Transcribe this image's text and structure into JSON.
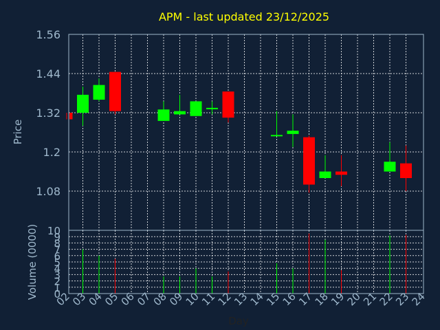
{
  "chart_data": {
    "type": "candlestick",
    "title": "APM - last updated 23/12/2025",
    "colors": {
      "background": "#112035",
      "up": "#00ff00",
      "down": "#ff0000",
      "title": "#ffff00",
      "axis": "#9fb8cc"
    },
    "grid": true,
    "price_panel": {
      "ylabel": "Price",
      "ylim": [
        0.96,
        1.56
      ],
      "yticks": [
        "1.56",
        "1.44",
        "1.32",
        "1.2",
        "1.08"
      ],
      "ytick_values": [
        1.56,
        1.44,
        1.32,
        1.2,
        1.08
      ]
    },
    "volume_panel": {
      "ylabel": "Volume (0000)",
      "ylim": [
        0,
        10
      ],
      "yticks": [
        "10",
        "9",
        "8",
        "7",
        "6",
        "5",
        "4",
        "3",
        "2",
        "1",
        "0"
      ],
      "ytick_values": [
        10,
        9,
        8,
        7,
        6,
        5,
        4,
        3,
        2,
        1,
        0
      ]
    },
    "xlabel": "Day",
    "x_ticks": [
      "02",
      "03",
      "04",
      "05",
      "06",
      "07",
      "08",
      "09",
      "10",
      "11",
      "12",
      "13",
      "14",
      "15",
      "16",
      "17",
      "18",
      "19",
      "20",
      "21",
      "22",
      "23",
      "24"
    ],
    "candles": [
      {
        "day": "02",
        "open": 1.32,
        "high": 1.32,
        "low": 1.3,
        "close": 1.3,
        "volume": 0
      },
      {
        "day": "03",
        "open": 1.32,
        "high": 1.4,
        "low": 1.28,
        "close": 1.375,
        "volume": 7.0
      },
      {
        "day": "04",
        "open": 1.36,
        "high": 1.425,
        "low": 1.355,
        "close": 1.405,
        "volume": 6.0
      },
      {
        "day": "05",
        "open": 1.445,
        "high": 1.445,
        "low": 1.315,
        "close": 1.325,
        "volume": 5.5
      },
      {
        "day": "08",
        "open": 1.295,
        "high": 1.355,
        "low": 1.295,
        "close": 1.33,
        "volume": 2.7
      },
      {
        "day": "09",
        "open": 1.315,
        "high": 1.375,
        "low": 1.315,
        "close": 1.325,
        "volume": 2.7
      },
      {
        "day": "10",
        "open": 1.31,
        "high": 1.355,
        "low": 1.31,
        "close": 1.355,
        "volume": 4.0
      },
      {
        "day": "11",
        "open": 1.335,
        "high": 1.355,
        "low": 1.315,
        "close": 1.335,
        "volume": 2.7
      },
      {
        "day": "12",
        "open": 1.385,
        "high": 1.385,
        "low": 1.29,
        "close": 1.305,
        "volume": 3.5
      },
      {
        "day": "15",
        "open": 1.25,
        "high": 1.325,
        "low": 1.25,
        "close": 1.252,
        "volume": 4.8
      },
      {
        "day": "16",
        "open": 1.255,
        "high": 1.315,
        "low": 1.215,
        "close": 1.265,
        "volume": 4.0
      },
      {
        "day": "17",
        "open": 1.245,
        "high": 1.25,
        "low": 1.075,
        "close": 1.1,
        "volume": 9.5
      },
      {
        "day": "18",
        "open": 1.12,
        "high": 1.19,
        "low": 1.12,
        "close": 1.14,
        "volume": 8.5
      },
      {
        "day": "19",
        "open": 1.14,
        "high": 1.19,
        "low": 1.095,
        "close": 1.13,
        "volume": 3.7
      },
      {
        "day": "22",
        "open": 1.14,
        "high": 1.23,
        "low": 1.14,
        "close": 1.17,
        "volume": 9.2
      },
      {
        "day": "23",
        "open": 1.165,
        "high": 1.22,
        "low": 1.08,
        "close": 1.12,
        "volume": 9.3
      }
    ]
  }
}
